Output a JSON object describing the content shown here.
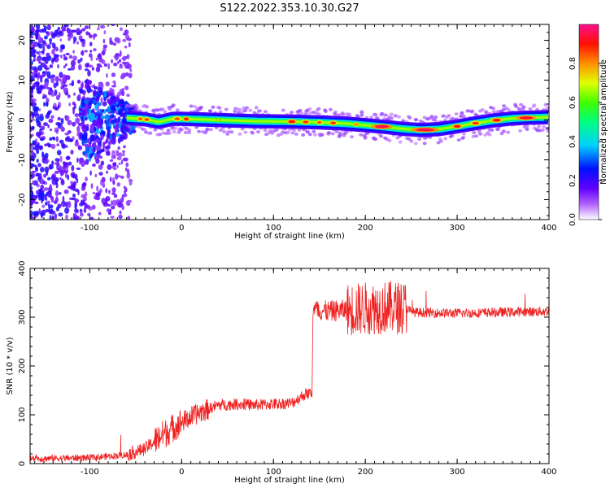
{
  "title": "S122.2022.353.10.30.G27",
  "chart_data": [
    {
      "type": "heatmap",
      "xlabel": "Height of straight line (km)",
      "ylabel": "Frequency (Hz)",
      "xlim": [
        -165,
        400
      ],
      "ylim": [
        -25,
        24
      ],
      "xticks": [
        -100,
        0,
        100,
        200,
        300,
        400
      ],
      "yticks": [
        -20,
        -10,
        0,
        10,
        20
      ],
      "colorbar": {
        "label": "Normalized spectral amplitude",
        "range": [
          0,
          1
        ],
        "ticks": [
          0.0,
          0.2,
          0.4,
          0.6,
          0.8
        ],
        "colormap": [
          "#ffffff",
          "#6a00ff",
          "#0010ff",
          "#00e5ff",
          "#00ff40",
          "#ffff00",
          "#ff8000",
          "#ff0000",
          "#ff1080"
        ]
      },
      "ridge": {
        "x": [
          -60,
          -40,
          -25,
          -10,
          0,
          40,
          80,
          120,
          150,
          180,
          200,
          220,
          240,
          260,
          280,
          300,
          320,
          340,
          360,
          380,
          400
        ],
        "y": [
          0.5,
          0.2,
          -0.5,
          0.3,
          0.3,
          0,
          -0.3,
          -0.4,
          -0.6,
          -0.9,
          -1.3,
          -1.7,
          -2.2,
          -2.5,
          -2.3,
          -1.6,
          -0.8,
          -0.1,
          0.4,
          0.6,
          0.7
        ]
      },
      "grid": false
    },
    {
      "type": "line",
      "xlabel": "Height of straight line (km)",
      "ylabel": "SNR (10 * v/v)",
      "xlim": [
        -165,
        400
      ],
      "ylim": [
        0,
        400
      ],
      "xticks": [
        -100,
        0,
        100,
        200,
        300,
        400
      ],
      "yticks": [
        0,
        100,
        200,
        300,
        400
      ],
      "color": "#ee2020",
      "series": [
        {
          "x": [
            -165,
            -100,
            -60,
            -40,
            -20,
            0,
            20,
            40,
            60,
            80,
            100,
            120,
            135,
            142,
            143,
            160,
            180,
            200,
            220,
            245,
            250,
            300,
            350,
            400
          ],
          "y": [
            10,
            12,
            18,
            30,
            60,
            85,
            105,
            120,
            122,
            120,
            122,
            124,
            143,
            145,
            315,
            312,
            315,
            318,
            320,
            320,
            310,
            308,
            310,
            312
          ]
        }
      ],
      "grid": false
    }
  ]
}
